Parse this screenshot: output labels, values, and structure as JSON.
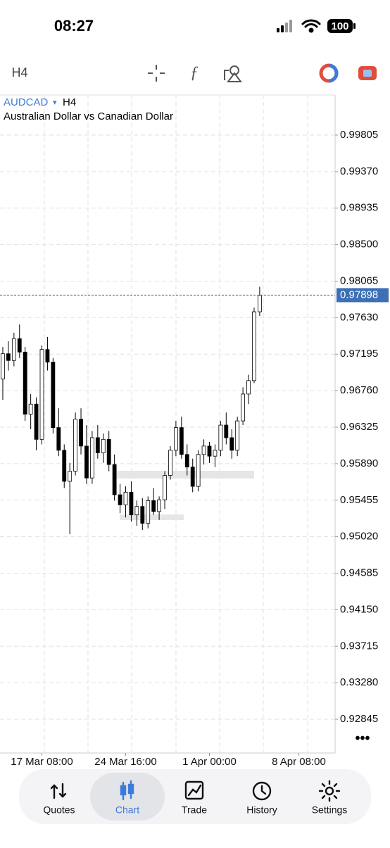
{
  "status_bar": {
    "time": "08:27",
    "battery": "100"
  },
  "toolbar": {
    "timeframe": "H4"
  },
  "chart_data": {
    "type": "candlestick",
    "title": "AUDCAD",
    "timeframe": "H4",
    "subtitle": "Australian Dollar vs Canadian Dollar",
    "categories": [
      null,
      null,
      null,
      null,
      null,
      null,
      null,
      "17 Mar 08:00",
      null,
      null,
      null,
      null,
      null,
      null,
      null,
      null,
      null,
      null,
      null,
      null,
      null,
      null,
      "24 Mar 16:00",
      null,
      null,
      null,
      null,
      null,
      null,
      null,
      null,
      null,
      null,
      null,
      null,
      null,
      null,
      "1 Apr 00:00",
      null,
      null,
      null,
      null,
      null,
      null,
      null,
      null,
      null,
      null,
      null,
      null,
      null,
      null,
      null,
      "8 Apr 08:00",
      null,
      null,
      null,
      null,
      null,
      null
    ],
    "open": [
      0.969,
      0.972,
      0.9712,
      0.9738,
      0.9722,
      0.9648,
      0.966,
      0.9618,
      0.9725,
      0.971,
      0.9632,
      0.9605,
      0.9568,
      0.958,
      0.9642,
      0.961,
      0.9572,
      0.962,
      0.9602,
      0.9618,
      0.9588,
      0.9552,
      0.954,
      0.9555,
      0.9528,
      0.9538,
      0.9518,
      0.9545,
      0.9532,
      0.9546,
      0.9575,
      0.9605,
      0.9632,
      0.96,
      0.9585,
      0.9562,
      0.96,
      0.961,
      0.9598,
      0.9605,
      0.9635,
      0.962,
      0.9605,
      0.964,
      0.9672,
      0.9688,
      0.977,
      null,
      null,
      null,
      null,
      null,
      null,
      null,
      null,
      null,
      null,
      null,
      null,
      null
    ],
    "high": [
      0.9728,
      0.9735,
      0.9745,
      0.9755,
      0.9728,
      0.9672,
      0.9668,
      0.973,
      0.974,
      0.9715,
      0.9655,
      0.9612,
      0.959,
      0.965,
      0.9655,
      0.9635,
      0.9628,
      0.9635,
      0.9625,
      0.9628,
      0.96,
      0.9565,
      0.9562,
      0.9568,
      0.9545,
      0.9548,
      0.955,
      0.956,
      0.955,
      0.958,
      0.961,
      0.964,
      0.9645,
      0.9612,
      0.9595,
      0.9605,
      0.9618,
      0.9615,
      0.9612,
      0.964,
      0.965,
      0.963,
      0.9645,
      0.968,
      0.9695,
      0.9775,
      0.97998,
      null,
      null,
      null,
      null,
      null,
      null,
      null,
      null,
      null,
      null,
      null,
      null,
      null
    ],
    "low": [
      0.9665,
      0.97,
      0.9705,
      0.9715,
      0.964,
      0.963,
      0.9605,
      0.9612,
      0.97,
      0.9625,
      0.9598,
      0.956,
      0.9505,
      0.9575,
      0.96,
      0.9565,
      0.9565,
      0.9595,
      0.959,
      0.958,
      0.9545,
      0.953,
      0.9525,
      0.952,
      0.9515,
      0.951,
      0.9512,
      0.9528,
      0.9522,
      0.9535,
      0.957,
      0.9598,
      0.9595,
      0.9575,
      0.9555,
      0.9556,
      0.9588,
      0.959,
      0.9585,
      0.9598,
      0.9612,
      0.9595,
      0.9598,
      0.9635,
      0.966,
      0.9685,
      0.9765,
      null,
      null,
      null,
      null,
      null,
      null,
      null,
      null,
      null,
      null,
      null,
      null,
      null
    ],
    "close": [
      0.972,
      0.9712,
      0.9738,
      0.9722,
      0.9648,
      0.966,
      0.9618,
      0.9725,
      0.971,
      0.9632,
      0.9605,
      0.9568,
      0.958,
      0.9642,
      0.961,
      0.9572,
      0.962,
      0.9602,
      0.9618,
      0.9588,
      0.9552,
      0.954,
      0.9555,
      0.9528,
      0.9538,
      0.9518,
      0.9545,
      0.9532,
      0.9546,
      0.9575,
      0.9605,
      0.9632,
      0.96,
      0.9585,
      0.9562,
      0.96,
      0.961,
      0.9598,
      0.9605,
      0.9635,
      0.962,
      0.9605,
      0.964,
      0.9672,
      0.9688,
      0.977,
      0.97898,
      null,
      null,
      null,
      null,
      null,
      null,
      null,
      null,
      null,
      null,
      null,
      null,
      null
    ],
    "last_price": 0.97898,
    "ylim": [
      0.92443,
      1.00283
    ],
    "yticks": [
      0.99805,
      {
        "value": 0.9937,
        "label": "0.99370"
      },
      0.98935,
      {
        "value": 0.985,
        "label": "0.98500"
      },
      0.98065,
      {
        "value": 0.9763,
        "label": "0.97630"
      },
      0.97195,
      {
        "value": 0.9676,
        "label": "0.96760"
      },
      0.96325,
      {
        "value": 0.9589,
        "label": "0.95890"
      },
      0.95455,
      {
        "value": 0.9502,
        "label": "0.95020"
      },
      0.94585,
      {
        "value": 0.9415,
        "label": "0.94150"
      },
      0.93715,
      {
        "value": 0.9328,
        "label": "0.93280"
      },
      0.92845
    ],
    "grid": true,
    "bull_color": "#ffffff",
    "bear_color": "#000000",
    "last_price_color": "#3d6fb5"
  },
  "tab_bar": {
    "tabs": [
      "Quotes",
      "Chart",
      "Trade",
      "History",
      "Settings"
    ],
    "active": 1
  }
}
